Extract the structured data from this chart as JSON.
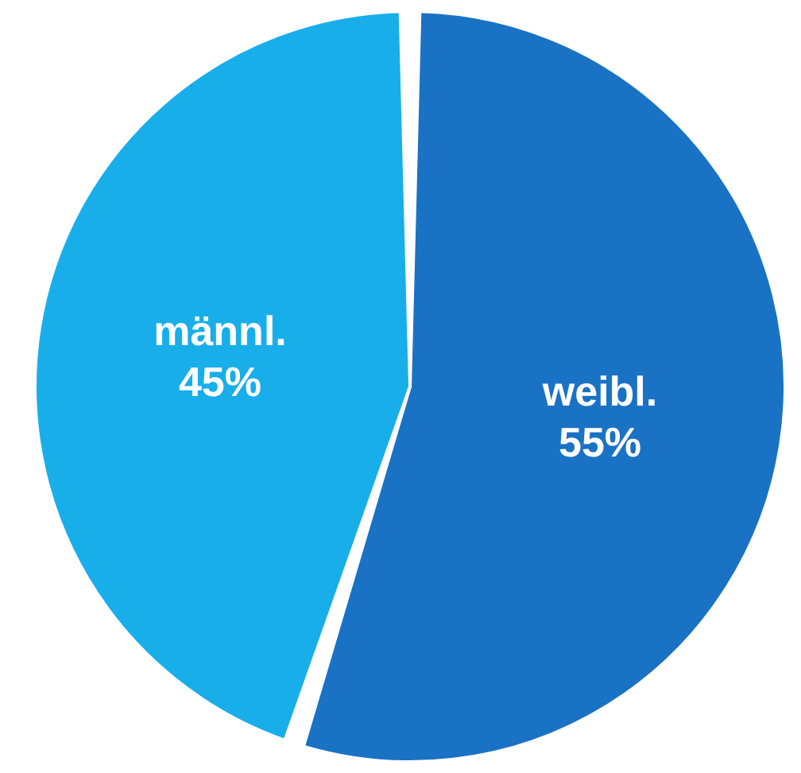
{
  "chart_data": {
    "type": "pie",
    "categories": [
      "weibl.",
      "männl."
    ],
    "values": [
      55,
      45
    ],
    "colors": [
      "#1a72c4",
      "#18aeea"
    ],
    "value_labels": [
      "55%",
      "45%"
    ],
    "legend": false
  }
}
